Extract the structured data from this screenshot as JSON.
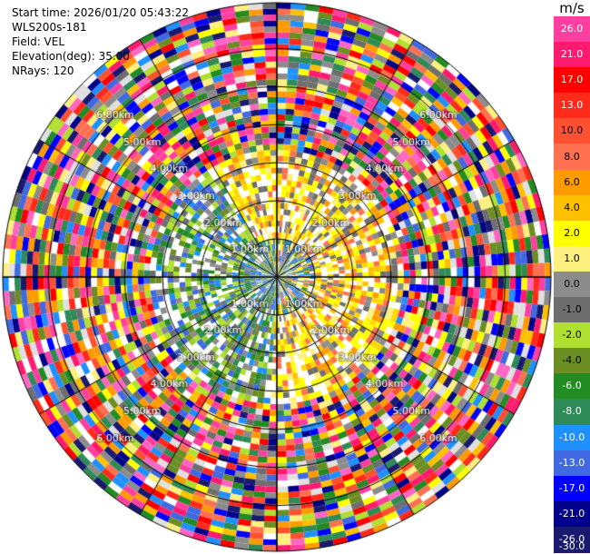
{
  "header": {
    "start_time": "Start time: 2026/01/20 05:43:22",
    "instrument": "WLS200s-181",
    "field": "Field: VEL",
    "elevation": "Elevation(deg): 35.00",
    "nrays": "NRays: 120"
  },
  "ppi": {
    "nrays": 120,
    "range_rings_km": [
      "1.00km",
      "2.00km",
      "3.00km",
      "4.00km",
      "5.00km",
      "6.00km"
    ],
    "ring_label_angles_deg": [
      45,
      135,
      225,
      315
    ]
  },
  "colorbar": {
    "unit": "m/s",
    "ticks": [
      "26.0",
      "21.0",
      "17.0",
      "13.0",
      "10.0",
      "8.0",
      "6.0",
      "4.0",
      "2.0",
      "1.0",
      "0.0",
      "-1.0",
      "-2.0",
      "-4.0",
      "-6.0",
      "-8.0",
      "-10.0",
      "-13.0",
      "-17.0",
      "-21.0",
      "-26.0",
      "-30.0"
    ],
    "colors": [
      "#ff3fa0",
      "#ff1a6e",
      "#ff0000",
      "#ff2a1a",
      "#ff5030",
      "#ff7050",
      "#ff9b00",
      "#ffc000",
      "#ffff00",
      "#fff080",
      "#8c8c8c",
      "#6e6e6e",
      "#b0e030",
      "#6b8e23",
      "#228b22",
      "#2e8b57",
      "#1e90ff",
      "#4169e1",
      "#0000ff",
      "#00008b",
      "#191970"
    ]
  }
}
